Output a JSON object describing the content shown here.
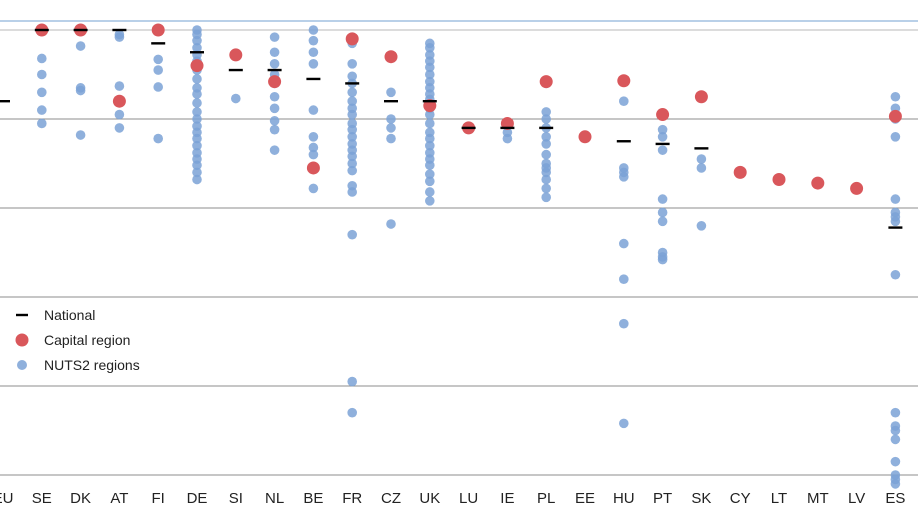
{
  "chart_data": {
    "type": "scatter",
    "categories": [
      "EU",
      "SE",
      "DK",
      "AT",
      "FI",
      "DE",
      "SI",
      "NL",
      "BE",
      "FR",
      "CZ",
      "UK",
      "LU",
      "IE",
      "PL",
      "EE",
      "HU",
      "PT",
      "SK",
      "CY",
      "LT",
      "MT",
      "LV",
      "ES"
    ],
    "ylim": [
      -4.2,
      1.1
    ],
    "gridlines": [
      0,
      -1,
      -2,
      -3,
      -4
    ],
    "grid": true,
    "legend_position": "bottom-left",
    "colors": {
      "national": "#000000",
      "capital": "#d9575b",
      "regions": "#7ba2d6",
      "top_line": "#8fb4d9"
    },
    "series": [
      {
        "name": "National",
        "marker": "dash",
        "values": [
          0.2,
          1.0,
          1.0,
          1.0,
          0.85,
          0.75,
          0.55,
          0.55,
          0.45,
          0.4,
          0.2,
          0.2,
          -0.1,
          -0.1,
          -0.1,
          null,
          -0.25,
          -0.28,
          -0.33,
          null,
          null,
          null,
          null,
          -1.22
        ]
      },
      {
        "name": "Capital region",
        "marker": "circle",
        "values": [
          null,
          1.0,
          1.0,
          0.2,
          1.0,
          0.6,
          0.72,
          0.42,
          -0.55,
          0.9,
          0.7,
          0.15,
          -0.1,
          -0.05,
          0.42,
          -0.2,
          0.43,
          0.05,
          0.25,
          -0.6,
          -0.68,
          -0.72,
          -0.78,
          0.03
        ]
      },
      {
        "name": "NUTS2 regions",
        "marker": "circle",
        "points": [
          {
            "cat": "SE",
            "y": 0.68
          },
          {
            "cat": "SE",
            "y": 0.5
          },
          {
            "cat": "SE",
            "y": 0.3
          },
          {
            "cat": "SE",
            "y": 0.1
          },
          {
            "cat": "SE",
            "y": -0.05
          },
          {
            "cat": "DK",
            "y": 0.82
          },
          {
            "cat": "DK",
            "y": 0.35
          },
          {
            "cat": "DK",
            "y": 0.32
          },
          {
            "cat": "DK",
            "y": -0.18
          },
          {
            "cat": "AT",
            "y": 0.95
          },
          {
            "cat": "AT",
            "y": 0.92
          },
          {
            "cat": "AT",
            "y": 0.37
          },
          {
            "cat": "AT",
            "y": 0.2
          },
          {
            "cat": "AT",
            "y": 0.05
          },
          {
            "cat": "AT",
            "y": -0.1
          },
          {
            "cat": "FI",
            "y": 0.67
          },
          {
            "cat": "FI",
            "y": 0.55
          },
          {
            "cat": "FI",
            "y": 0.36
          },
          {
            "cat": "FI",
            "y": -0.22
          },
          {
            "cat": "DE",
            "y": 1.0
          },
          {
            "cat": "DE",
            "y": 0.95
          },
          {
            "cat": "DE",
            "y": 0.88
          },
          {
            "cat": "DE",
            "y": 0.8
          },
          {
            "cat": "DE",
            "y": 0.72
          },
          {
            "cat": "DE",
            "y": 0.65
          },
          {
            "cat": "DE",
            "y": 0.55
          },
          {
            "cat": "DE",
            "y": 0.45
          },
          {
            "cat": "DE",
            "y": 0.35
          },
          {
            "cat": "DE",
            "y": 0.28
          },
          {
            "cat": "DE",
            "y": 0.18
          },
          {
            "cat": "DE",
            "y": 0.08
          },
          {
            "cat": "DE",
            "y": 0.0
          },
          {
            "cat": "DE",
            "y": -0.08
          },
          {
            "cat": "DE",
            "y": -0.15
          },
          {
            "cat": "DE",
            "y": -0.22
          },
          {
            "cat": "DE",
            "y": -0.3
          },
          {
            "cat": "DE",
            "y": -0.38
          },
          {
            "cat": "DE",
            "y": -0.45
          },
          {
            "cat": "DE",
            "y": -0.52
          },
          {
            "cat": "DE",
            "y": -0.6
          },
          {
            "cat": "DE",
            "y": -0.68
          },
          {
            "cat": "SI",
            "y": 0.23
          },
          {
            "cat": "NL",
            "y": 0.92
          },
          {
            "cat": "NL",
            "y": 0.75
          },
          {
            "cat": "NL",
            "y": 0.62
          },
          {
            "cat": "NL",
            "y": 0.5
          },
          {
            "cat": "NL",
            "y": 0.4
          },
          {
            "cat": "NL",
            "y": 0.25
          },
          {
            "cat": "NL",
            "y": 0.12
          },
          {
            "cat": "NL",
            "y": -0.02
          },
          {
            "cat": "NL",
            "y": -0.12
          },
          {
            "cat": "NL",
            "y": -0.35
          },
          {
            "cat": "BE",
            "y": 1.0
          },
          {
            "cat": "BE",
            "y": 0.88
          },
          {
            "cat": "BE",
            "y": 0.75
          },
          {
            "cat": "BE",
            "y": 0.62
          },
          {
            "cat": "BE",
            "y": 0.1
          },
          {
            "cat": "BE",
            "y": -0.2
          },
          {
            "cat": "BE",
            "y": -0.32
          },
          {
            "cat": "BE",
            "y": -0.4
          },
          {
            "cat": "BE",
            "y": -0.78
          },
          {
            "cat": "FR",
            "y": 0.92
          },
          {
            "cat": "FR",
            "y": 0.85
          },
          {
            "cat": "FR",
            "y": 0.62
          },
          {
            "cat": "FR",
            "y": 0.48
          },
          {
            "cat": "FR",
            "y": 0.4
          },
          {
            "cat": "FR",
            "y": 0.3
          },
          {
            "cat": "FR",
            "y": 0.2
          },
          {
            "cat": "FR",
            "y": 0.12
          },
          {
            "cat": "FR",
            "y": 0.05
          },
          {
            "cat": "FR",
            "y": -0.05
          },
          {
            "cat": "FR",
            "y": -0.12
          },
          {
            "cat": "FR",
            "y": -0.2
          },
          {
            "cat": "FR",
            "y": -0.28
          },
          {
            "cat": "FR",
            "y": -0.35
          },
          {
            "cat": "FR",
            "y": -0.42
          },
          {
            "cat": "FR",
            "y": -0.5
          },
          {
            "cat": "FR",
            "y": -0.58
          },
          {
            "cat": "FR",
            "y": -0.75
          },
          {
            "cat": "FR",
            "y": -0.82
          },
          {
            "cat": "FR",
            "y": -1.3
          },
          {
            "cat": "FR",
            "y": -2.95
          },
          {
            "cat": "FR",
            "y": -3.3
          },
          {
            "cat": "CZ",
            "y": 0.3
          },
          {
            "cat": "CZ",
            "y": 0.0
          },
          {
            "cat": "CZ",
            "y": -0.1
          },
          {
            "cat": "CZ",
            "y": -0.22
          },
          {
            "cat": "CZ",
            "y": -1.18
          },
          {
            "cat": "UK",
            "y": 0.85
          },
          {
            "cat": "UK",
            "y": 0.8
          },
          {
            "cat": "UK",
            "y": 0.72
          },
          {
            "cat": "UK",
            "y": 0.65
          },
          {
            "cat": "UK",
            "y": 0.58
          },
          {
            "cat": "UK",
            "y": 0.5
          },
          {
            "cat": "UK",
            "y": 0.42
          },
          {
            "cat": "UK",
            "y": 0.35
          },
          {
            "cat": "UK",
            "y": 0.28
          },
          {
            "cat": "UK",
            "y": 0.22
          },
          {
            "cat": "UK",
            "y": 0.12
          },
          {
            "cat": "UK",
            "y": 0.05
          },
          {
            "cat": "UK",
            "y": -0.05
          },
          {
            "cat": "UK",
            "y": -0.15
          },
          {
            "cat": "UK",
            "y": -0.22
          },
          {
            "cat": "UK",
            "y": -0.3
          },
          {
            "cat": "UK",
            "y": -0.38
          },
          {
            "cat": "UK",
            "y": -0.45
          },
          {
            "cat": "UK",
            "y": -0.52
          },
          {
            "cat": "UK",
            "y": -0.62
          },
          {
            "cat": "UK",
            "y": -0.7
          },
          {
            "cat": "UK",
            "y": -0.82
          },
          {
            "cat": "UK",
            "y": -0.92
          },
          {
            "cat": "IE",
            "y": -0.15
          },
          {
            "cat": "IE",
            "y": -0.22
          },
          {
            "cat": "PL",
            "y": 0.4
          },
          {
            "cat": "PL",
            "y": 0.08
          },
          {
            "cat": "PL",
            "y": 0.0
          },
          {
            "cat": "PL",
            "y": -0.1
          },
          {
            "cat": "PL",
            "y": -0.2
          },
          {
            "cat": "PL",
            "y": -0.28
          },
          {
            "cat": "PL",
            "y": -0.4
          },
          {
            "cat": "PL",
            "y": -0.5
          },
          {
            "cat": "PL",
            "y": -0.55
          },
          {
            "cat": "PL",
            "y": -0.6
          },
          {
            "cat": "PL",
            "y": -0.68
          },
          {
            "cat": "PL",
            "y": -0.78
          },
          {
            "cat": "PL",
            "y": -0.88
          },
          {
            "cat": "HU",
            "y": 0.2
          },
          {
            "cat": "HU",
            "y": -0.55
          },
          {
            "cat": "HU",
            "y": -0.6
          },
          {
            "cat": "HU",
            "y": -0.65
          },
          {
            "cat": "HU",
            "y": -1.4
          },
          {
            "cat": "HU",
            "y": -1.8
          },
          {
            "cat": "HU",
            "y": -2.3
          },
          {
            "cat": "HU",
            "y": -3.42
          },
          {
            "cat": "PT",
            "y": -0.12
          },
          {
            "cat": "PT",
            "y": -0.2
          },
          {
            "cat": "PT",
            "y": -0.35
          },
          {
            "cat": "PT",
            "y": -0.9
          },
          {
            "cat": "PT",
            "y": -1.05
          },
          {
            "cat": "PT",
            "y": -1.15
          },
          {
            "cat": "PT",
            "y": -1.5
          },
          {
            "cat": "PT",
            "y": -1.55
          },
          {
            "cat": "PT",
            "y": -1.58
          },
          {
            "cat": "SK",
            "y": -0.45
          },
          {
            "cat": "SK",
            "y": -0.55
          },
          {
            "cat": "SK",
            "y": -1.2
          },
          {
            "cat": "ES",
            "y": 0.25
          },
          {
            "cat": "ES",
            "y": 0.12
          },
          {
            "cat": "ES",
            "y": 0.0
          },
          {
            "cat": "ES",
            "y": -0.2
          },
          {
            "cat": "ES",
            "y": -0.9
          },
          {
            "cat": "ES",
            "y": -1.05
          },
          {
            "cat": "ES",
            "y": -1.1
          },
          {
            "cat": "ES",
            "y": -1.15
          },
          {
            "cat": "ES",
            "y": -1.75
          },
          {
            "cat": "ES",
            "y": -3.3
          },
          {
            "cat": "ES",
            "y": -3.45
          },
          {
            "cat": "ES",
            "y": -3.5
          },
          {
            "cat": "ES",
            "y": -3.6
          },
          {
            "cat": "ES",
            "y": -3.85
          },
          {
            "cat": "ES",
            "y": -4.0
          },
          {
            "cat": "ES",
            "y": -4.05
          },
          {
            "cat": "ES",
            "y": -4.1
          },
          {
            "cat": "ES",
            "y": -4.55
          }
        ]
      }
    ]
  }
}
